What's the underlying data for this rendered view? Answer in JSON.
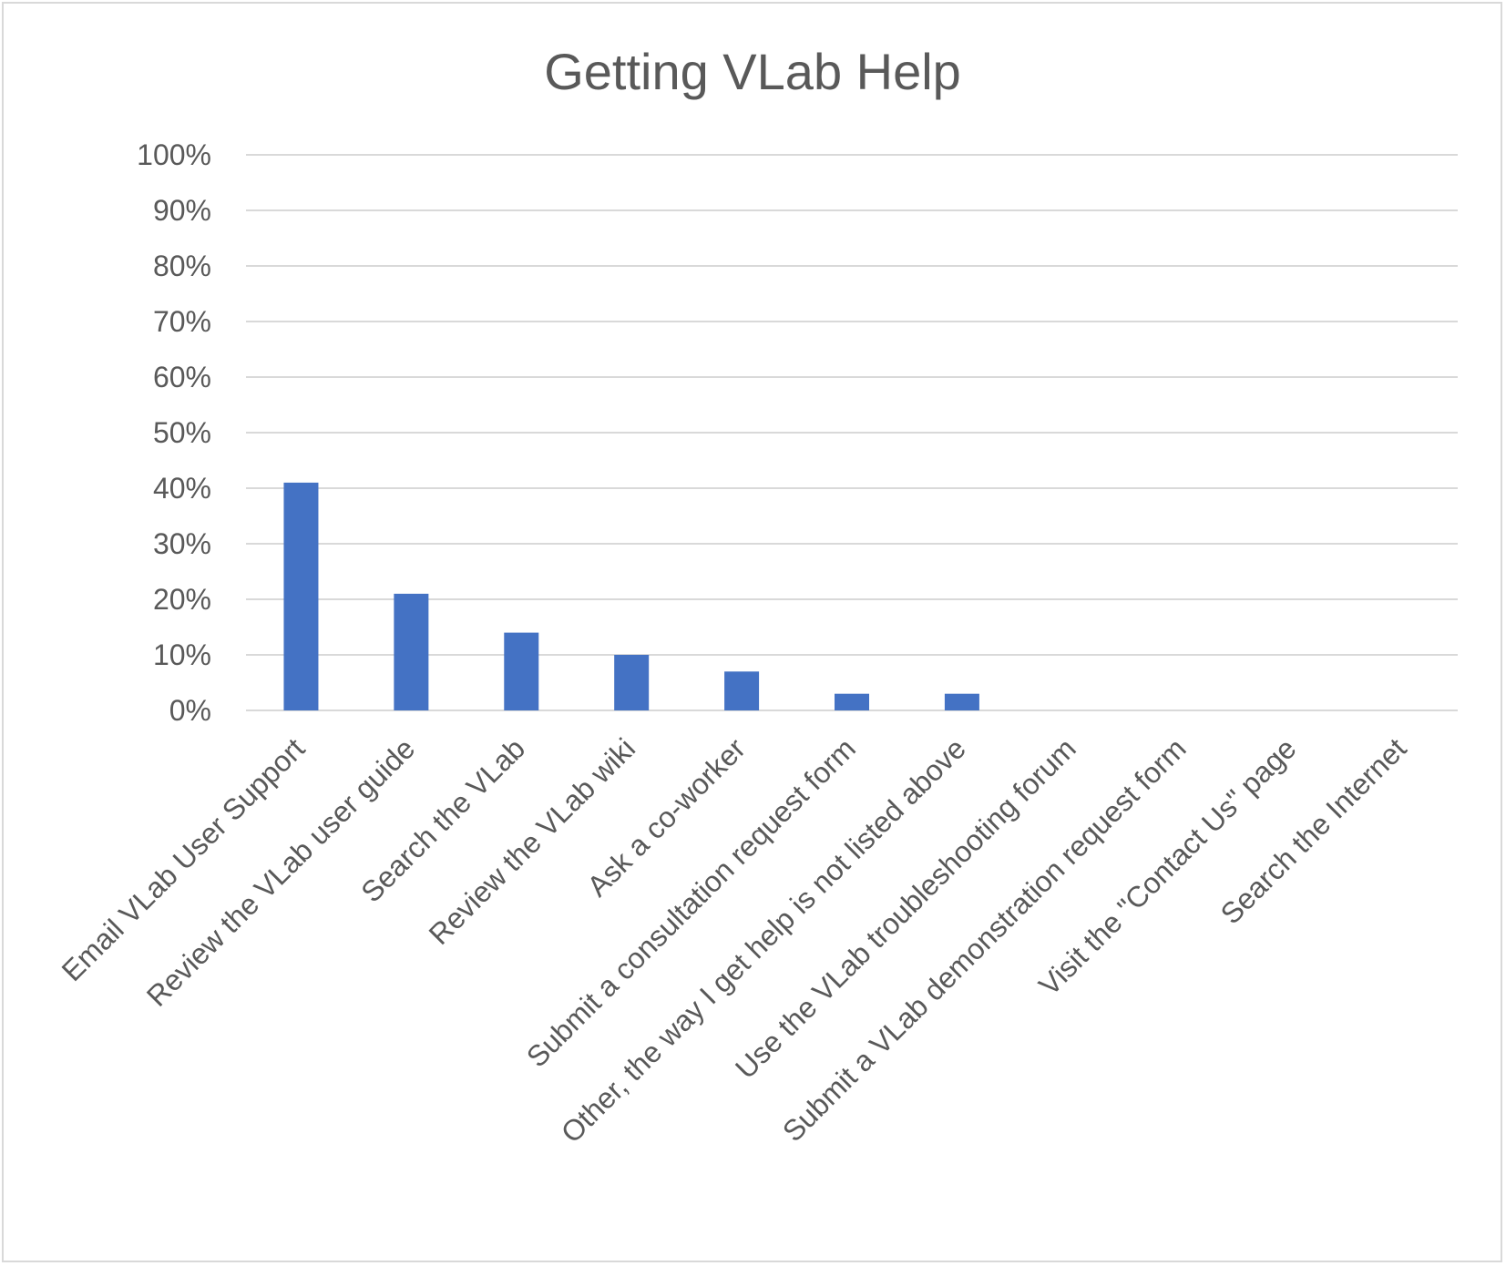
{
  "chart_data": {
    "type": "bar",
    "title": "Getting VLab Help",
    "xlabel": "",
    "ylabel": "",
    "ylim": [
      0,
      100
    ],
    "yticks": [
      0,
      10,
      20,
      30,
      40,
      50,
      60,
      70,
      80,
      90,
      100
    ],
    "ytick_format": "percent",
    "grid": true,
    "legend": "none",
    "bar_color": "#4472C4",
    "categories": [
      "Email VLab User Support",
      "Review the VLab user guide",
      "Search the VLab",
      "Review the VLab wiki",
      "Ask a co-worker",
      "Submit a consultation request form",
      "Other, the way I get help is not listed above",
      "Use the VLab troubleshooting forum",
      "Submit a VLab demonstration request form",
      "Visit the \"Contact Us\"  page",
      "Search the Internet"
    ],
    "values": [
      41,
      21,
      14,
      10,
      7,
      3,
      3,
      0,
      0,
      0,
      0
    ]
  }
}
